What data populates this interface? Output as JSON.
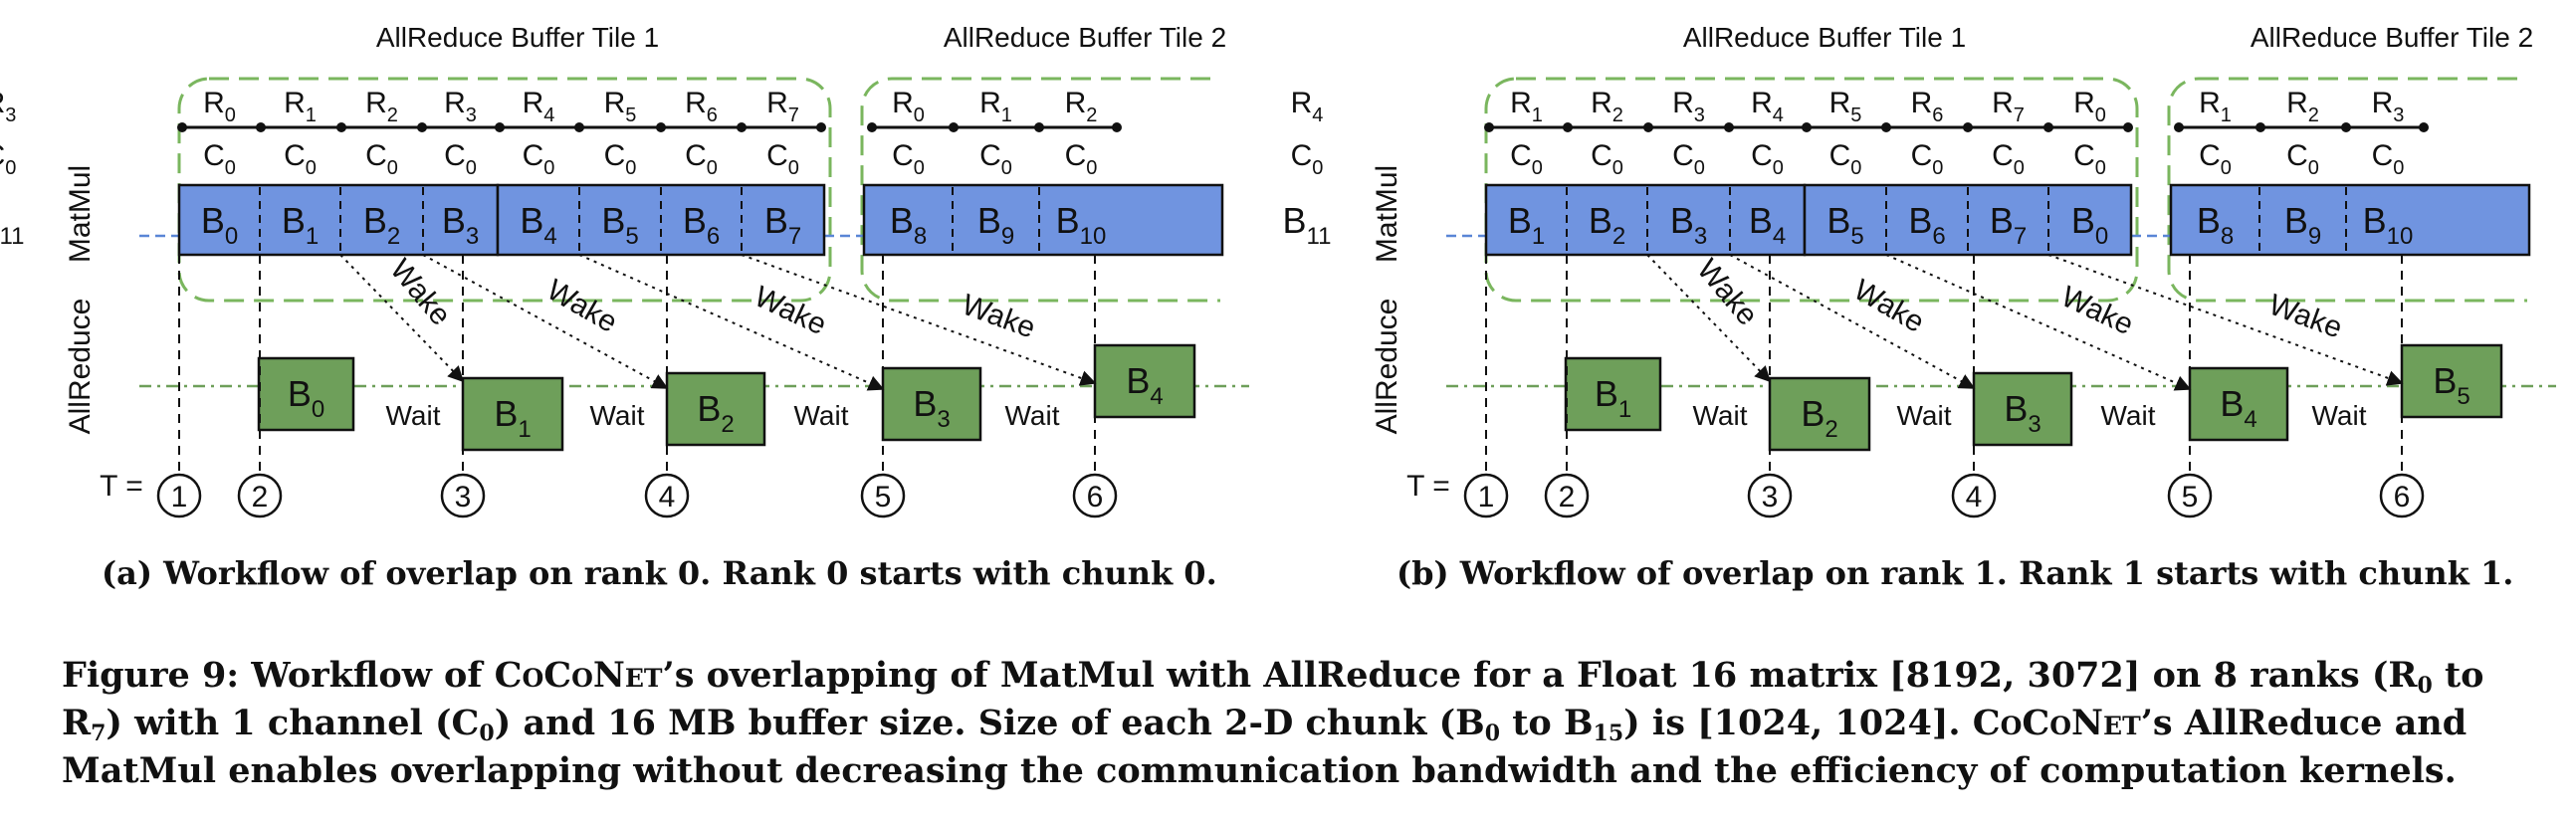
{
  "panels": [
    {
      "id": "a",
      "tile1_title": "AllReduce Buffer Tile 1",
      "tile2_title": "AllReduce Buffer Tile 2",
      "row_label_matmul": "MatMul",
      "row_label_allreduce": "AllReduce",
      "time_label": "T =",
      "ranks": [
        "0",
        "1",
        "2",
        "3",
        "4",
        "5",
        "6",
        "7",
        "0",
        "1",
        "2",
        "3"
      ],
      "matmul_blocks": [
        "0",
        "1",
        "2",
        "3",
        "4",
        "5",
        "6",
        "7",
        "8",
        "9",
        "10",
        "11"
      ],
      "allreduce_blocks": [
        "0",
        "1",
        "2",
        "3",
        "4"
      ],
      "wake_label": "Wake",
      "wait_label": "Wait",
      "times": [
        "1",
        "2",
        "3",
        "4",
        "5",
        "6"
      ],
      "caption": "(a) Workflow of overlap on rank 0. Rank 0 starts with chunk 0."
    },
    {
      "id": "b",
      "tile1_title": "AllReduce Buffer Tile 1",
      "tile2_title": "AllReduce Buffer Tile 2",
      "row_label_matmul": "MatMul",
      "row_label_allreduce": "AllReduce",
      "time_label": "T =",
      "ranks": [
        "1",
        "2",
        "3",
        "4",
        "5",
        "6",
        "7",
        "0",
        "1",
        "2",
        "3",
        "4"
      ],
      "matmul_blocks": [
        "1",
        "2",
        "3",
        "4",
        "5",
        "6",
        "7",
        "0",
        "8",
        "9",
        "10",
        "11"
      ],
      "allreduce_blocks": [
        "1",
        "2",
        "3",
        "4",
        "5"
      ],
      "wake_label": "Wake",
      "wait_label": "Wait",
      "times": [
        "1",
        "2",
        "3",
        "4",
        "5",
        "6"
      ],
      "caption": "(b) Workflow of overlap on rank 1. Rank 1 starts with chunk 1."
    }
  ],
  "figure_caption": {
    "label": "Figure 9:",
    "line1_pre": "Workflow of ",
    "name": "CoCoNet",
    "line1_post": "’s overlapping of MatMul with AllReduce for a Float 16 matrix [8192, 3072] on 8 ranks (R",
    "r0": "0",
    "to": " to",
    "line2_R": "R",
    "r7": "7",
    "line2_a": ") with 1 channel (C",
    "c0": "0",
    "line2_b": ") and 16 MB buffer size. Size of each 2-D chunk (B",
    "b0": "0",
    "line2_c": " to B",
    "b15": "15",
    "line2_d": ") is [1024, 1024]. ",
    "line2_e": "’s AllReduce and",
    "line3": "MatMul enables overlapping without decreasing the communication bandwidth and the efficiency of computation kernels."
  },
  "colors": {
    "matmul_fill": "#7094e0",
    "allreduce_fill": "#6e9f5a",
    "tile_border": "#7ab65e",
    "dash_line": "#6e9f5a",
    "matmul_guide": "#5a86d6"
  }
}
